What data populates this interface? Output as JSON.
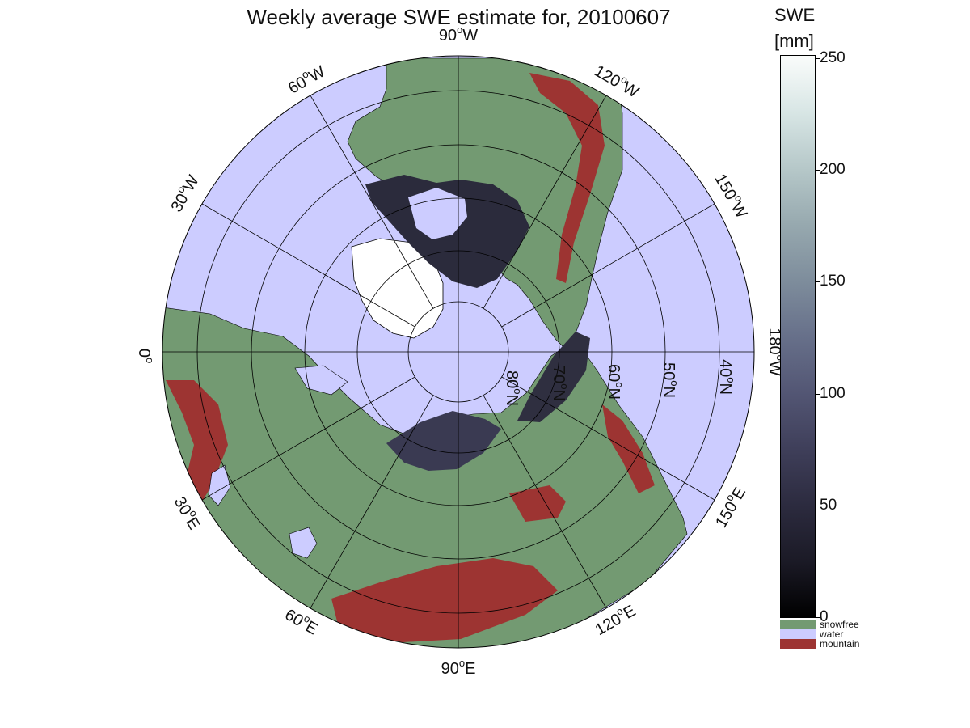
{
  "title": "Weekly average SWE estimate for, 20100607",
  "colorbar": {
    "title_line1": "SWE",
    "title_line2": "[mm]",
    "ticks": [
      {
        "value": 250,
        "label": "250"
      },
      {
        "value": 200,
        "label": "200"
      },
      {
        "value": 150,
        "label": "150"
      },
      {
        "value": 100,
        "label": "100"
      },
      {
        "value": 50,
        "label": "50"
      },
      {
        "value": 0,
        "label": "0"
      }
    ],
    "range": [
      0,
      250
    ],
    "categories": [
      {
        "label": "snowfree",
        "color": "#739a72"
      },
      {
        "label": "water",
        "color": "#ccccff"
      },
      {
        "label": "mountain",
        "color": "#9d3432"
      }
    ]
  },
  "map": {
    "projection": "north polar stereographic",
    "ocean_color": "#ccccff",
    "land_color": "#739a72",
    "mountain_color": "#9d3432",
    "longitude_labels": {
      "lon_90W": {
        "deg": "90",
        "hemi": "W"
      },
      "lon_120W": {
        "deg": "120",
        "hemi": "W"
      },
      "lon_150W": {
        "deg": "150",
        "hemi": "W"
      },
      "lon_180W": {
        "deg": "180",
        "hemi": "W"
      },
      "lon_150E": {
        "deg": "150",
        "hemi": "E"
      },
      "lon_120E": {
        "deg": "120",
        "hemi": "E"
      },
      "lon_90E": {
        "deg": "90",
        "hemi": "E"
      },
      "lon_60E": {
        "deg": "60",
        "hemi": "E"
      },
      "lon_30E": {
        "deg": "30",
        "hemi": "E"
      },
      "lon_0": {
        "deg": "0",
        "hemi": ""
      },
      "lon_30W": {
        "deg": "30",
        "hemi": "W"
      },
      "lon_60W": {
        "deg": "60",
        "hemi": "W"
      }
    },
    "latitude_labels": {
      "lat_80": {
        "deg": "80",
        "hemi": "N"
      },
      "lat_70": {
        "deg": "70",
        "hemi": "N"
      },
      "lat_60": {
        "deg": "60",
        "hemi": "N"
      },
      "lat_50": {
        "deg": "50",
        "hemi": "N"
      },
      "lat_40": {
        "deg": "40",
        "hemi": "N"
      }
    }
  }
}
